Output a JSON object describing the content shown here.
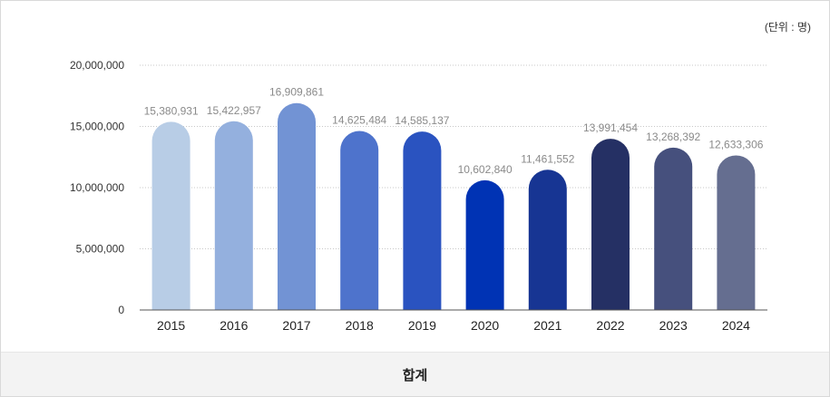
{
  "unit_label": "(단위 : 명)",
  "footer_label": "합계",
  "chart_data": {
    "type": "bar",
    "categories": [
      "2015",
      "2016",
      "2017",
      "2018",
      "2019",
      "2020",
      "2021",
      "2022",
      "2023",
      "2024"
    ],
    "values": [
      15380931,
      15422957,
      16909861,
      14625484,
      14585137,
      10602840,
      11461552,
      13991454,
      13268392,
      12633306
    ],
    "value_labels": [
      "15,380,931",
      "15,422,957",
      "16,909,861",
      "14,625,484",
      "14,585,137",
      "10,602,840",
      "11,461,552",
      "13,991,454",
      "13,268,392",
      "12,633,306"
    ],
    "colors": [
      "#b8cde6",
      "#94b0de",
      "#7293d4",
      "#4e73cc",
      "#2a53c0",
      "#0033b4",
      "#173593",
      "#253064",
      "#46507d",
      "#656e90"
    ],
    "yticks": [
      0,
      5000000,
      10000000,
      15000000,
      20000000
    ],
    "ytick_labels": [
      "0",
      "5,000,000",
      "10,000,000",
      "15,000,000",
      "20,000,000"
    ],
    "ylim": [
      0,
      20000000
    ],
    "grid": true
  }
}
